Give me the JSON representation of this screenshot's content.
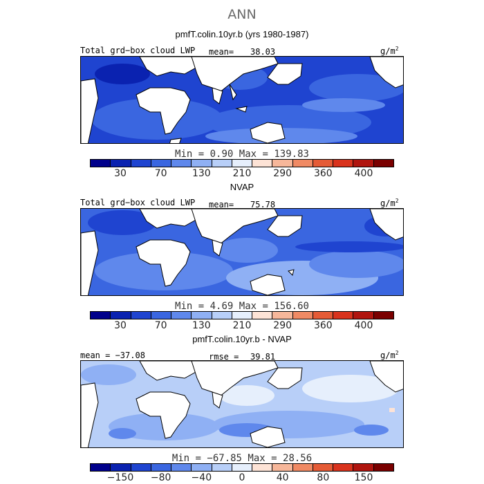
{
  "figure": {
    "title": "ANN",
    "units_base": "g/m",
    "units_exp": "2"
  },
  "panels": [
    {
      "title": "pmfT.colin.10yr.b (yrs 1980-1987)",
      "left_label": "Total grd−box cloud LWP",
      "stat_label": "mean=",
      "stat_value": "38.03",
      "min_label": "Min =",
      "min_value": "0.90",
      "max_label": "Max =",
      "max_value": "139.83",
      "tick_labels": [
        "30",
        "70",
        "130",
        "210",
        "290",
        "360",
        "400"
      ],
      "palette": [
        "#00008b",
        "#0a22b0",
        "#1f44d0",
        "#3a66e0",
        "#5f88ec",
        "#8fb0f4",
        "#b8cff8",
        "#e6effc",
        "#fde3d6",
        "#f7b79a",
        "#f08a64",
        "#e55b36",
        "#d9331d",
        "#b0150f",
        "#7a0000"
      ]
    },
    {
      "title": "NVAP",
      "left_label": "Total grd−box cloud LWP",
      "stat_label": "mean=",
      "stat_value": "75.78",
      "min_label": "Min =",
      "min_value": "4.69",
      "max_label": "Max =",
      "max_value": "156.60",
      "tick_labels": [
        "30",
        "70",
        "130",
        "210",
        "290",
        "360",
        "400"
      ],
      "palette": [
        "#00008b",
        "#0a22b0",
        "#1f44d0",
        "#3a66e0",
        "#5f88ec",
        "#8fb0f4",
        "#b8cff8",
        "#e6effc",
        "#fde3d6",
        "#f7b79a",
        "#f08a64",
        "#e55b36",
        "#d9331d",
        "#b0150f",
        "#7a0000"
      ]
    },
    {
      "title": "pmfT.colin.10yr.b - NVAP",
      "left_label": "mean = −37.08",
      "stat_label": "rmse =",
      "stat_value": "39.81",
      "min_label": "Min =",
      "min_value": "−67.85",
      "max_label": "Max =",
      "max_value": "28.56",
      "tick_labels": [
        "−150",
        "−80",
        "−40",
        "0",
        "40",
        "80",
        "150"
      ],
      "palette": [
        "#00008b",
        "#0a22b0",
        "#1f44d0",
        "#3a66e0",
        "#5f88ec",
        "#8fb0f4",
        "#b8cff8",
        "#e6effc",
        "#fde3d6",
        "#f7b79a",
        "#f08a64",
        "#e55b36",
        "#d9331d",
        "#b0150f",
        "#7a0000"
      ]
    }
  ],
  "colors": {
    "land": "#ffffff",
    "coast": "#000000",
    "field_dark": "#1f44d0",
    "field_mid": "#3a66e0",
    "field_light": "#5f88ec",
    "field_pale": "#8fb0f4",
    "field_paler": "#b8cff8",
    "field_palest": "#e6effc"
  }
}
